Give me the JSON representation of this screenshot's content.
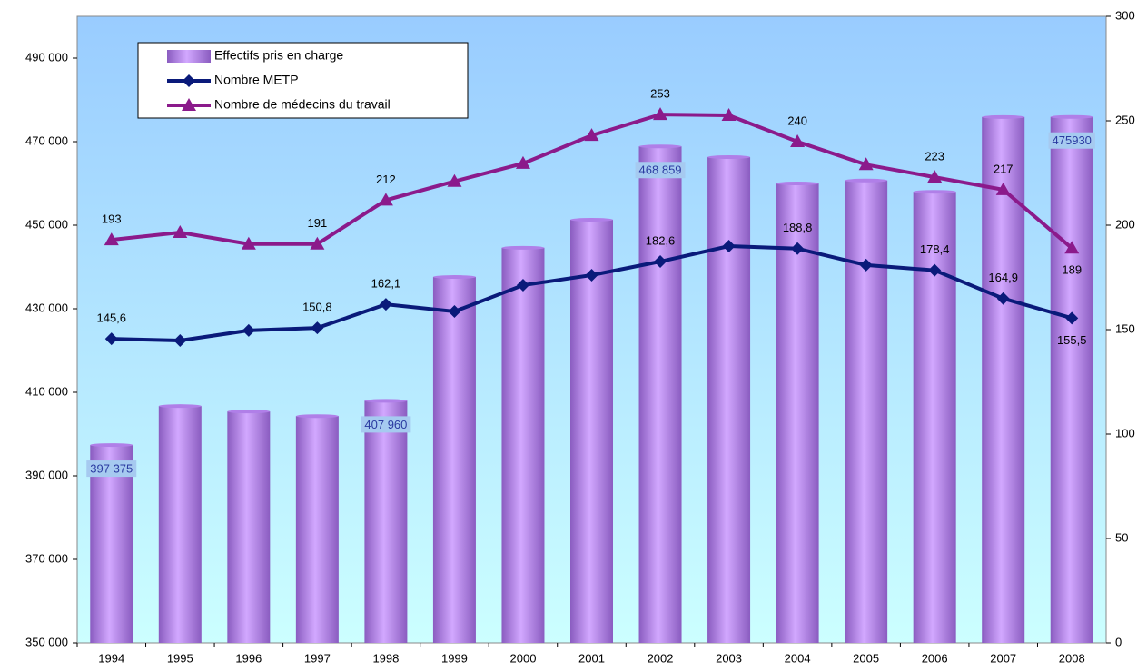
{
  "chart_data": {
    "type": "bar_line",
    "categories": [
      "1994",
      "1995",
      "1996",
      "1997",
      "1998",
      "1999",
      "2000",
      "2001",
      "2002",
      "2003",
      "2004",
      "2005",
      "2006",
      "2007",
      "2008"
    ],
    "ylim": [
      350000,
      500000
    ],
    "yticks": [
      {
        "value": 350000,
        "label": "350 000"
      },
      {
        "value": 370000,
        "label": "370 000"
      },
      {
        "value": 390000,
        "label": "390 000"
      },
      {
        "value": 410000,
        "label": "410 000"
      },
      {
        "value": 430000,
        "label": "430 000"
      },
      {
        "value": 450000,
        "label": "450 000"
      },
      {
        "value": 470000,
        "label": "470 000"
      },
      {
        "value": 490000,
        "label": "490 000"
      }
    ],
    "y2lim": [
      0,
      300
    ],
    "y2ticks": [
      0,
      50,
      100,
      150,
      200,
      250,
      300
    ],
    "legend": "top-left",
    "series": [
      {
        "name": "Effectifs pris en charge",
        "type": "bar",
        "color": "#b07fe8",
        "values": [
          397375,
          406700,
          405400,
          404300,
          407960,
          437600,
          444600,
          451300,
          468859,
          466300,
          460000,
          460700,
          458000,
          475900,
          475930
        ],
        "value_labels": [
          "397 375",
          null,
          null,
          null,
          "407 960",
          null,
          null,
          null,
          "468 859",
          null,
          null,
          null,
          null,
          null,
          "475930"
        ]
      },
      {
        "name": "Nombre METP",
        "type": "line",
        "axis": "y2",
        "marker": "diamond",
        "color": "#0a1a7a",
        "values": [
          145.6,
          144.8,
          149.6,
          150.8,
          162.1,
          158.7,
          171.3,
          176.1,
          182.6,
          190,
          188.8,
          180.9,
          178.4,
          164.9,
          155.5
        ],
        "value_labels": [
          "145,6",
          null,
          null,
          "150,8",
          "162,1",
          null,
          null,
          null,
          "182,6",
          null,
          "188,8",
          null,
          "178,4",
          "164,9",
          "155,5"
        ]
      },
      {
        "name": "Nombre de médecins du travail",
        "type": "line",
        "axis": "y2",
        "marker": "triangle",
        "color": "#8b1a8b",
        "values": [
          193,
          196.5,
          191,
          191,
          212,
          221,
          229.6,
          243,
          253,
          252.6,
          240,
          229,
          223,
          217,
          189
        ],
        "value_labels": [
          "193",
          null,
          null,
          "191",
          "212",
          null,
          null,
          null,
          "253",
          null,
          "240",
          null,
          "223",
          "217",
          "189"
        ]
      }
    ]
  }
}
